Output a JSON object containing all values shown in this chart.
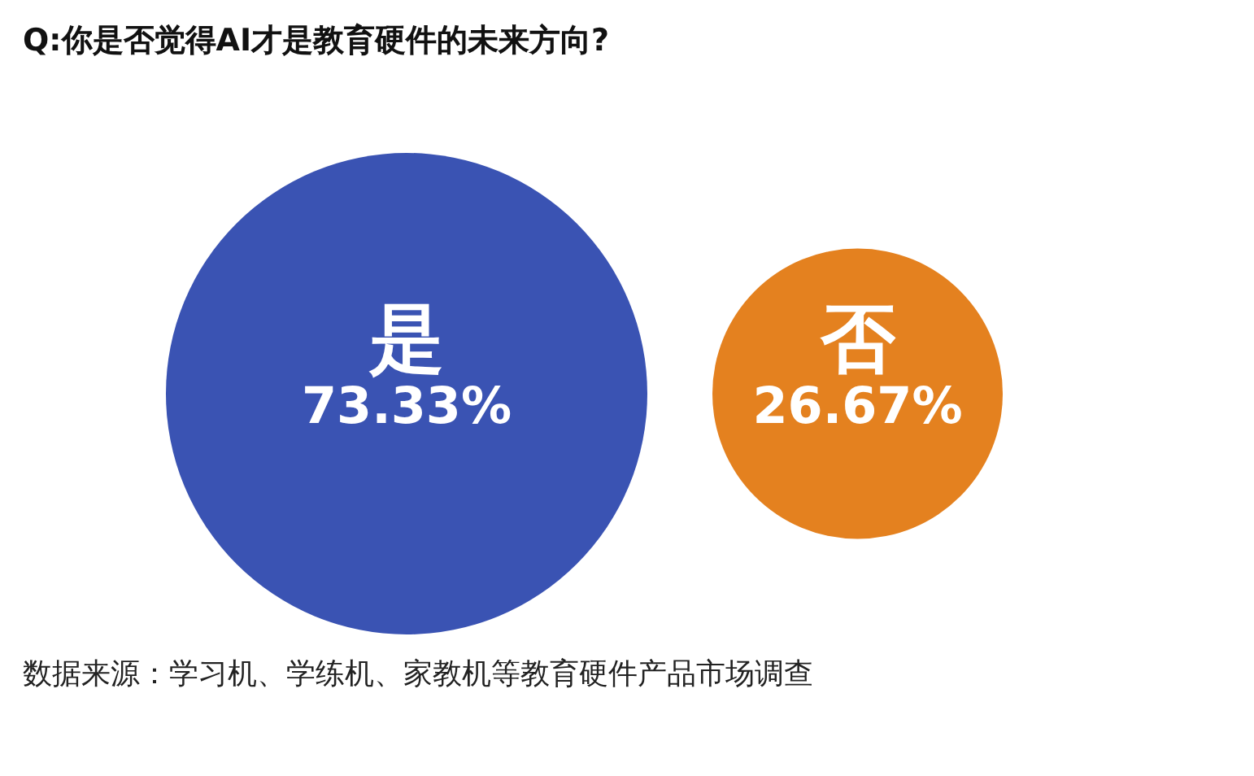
{
  "chart_data": {
    "type": "other",
    "title": "Q:你是否觉得AI才是教育硬件的未来方向?",
    "categories": [
      "是",
      "否"
    ],
    "values": [
      73.33,
      26.67
    ],
    "value_labels": [
      "73.33%",
      "26.67%"
    ],
    "colors": [
      "#3a53b3",
      "#e4811f"
    ],
    "annotations": [
      "数据来源：学习机、学练机、家教机等教育硬件产品市场调查"
    ]
  }
}
